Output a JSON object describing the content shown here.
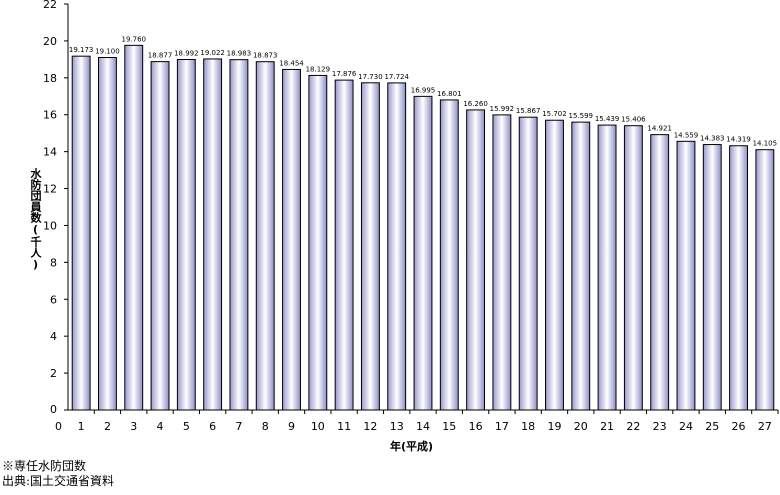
{
  "chart_data": {
    "type": "bar",
    "categories": [
      "1",
      "2",
      "3",
      "4",
      "5",
      "6",
      "7",
      "8",
      "9",
      "10",
      "11",
      "12",
      "13",
      "14",
      "15",
      "16",
      "17",
      "18",
      "19",
      "20",
      "21",
      "22",
      "23",
      "24",
      "25",
      "26",
      "27"
    ],
    "values": [
      19.173,
      19.1,
      19.76,
      18.877,
      18.992,
      19.022,
      18.983,
      18.873,
      18.454,
      18.129,
      17.876,
      17.73,
      17.724,
      16.995,
      16.801,
      16.26,
      15.992,
      15.867,
      15.702,
      15.599,
      15.439,
      15.406,
      14.921,
      14.559,
      14.383,
      14.319,
      14.105
    ],
    "value_labels": [
      "19.173",
      "19.100",
      "19.760",
      "18.877",
      "18.992",
      "19.022",
      "18.983",
      "18.873",
      "18.454",
      "18.129",
      "17.876",
      "17.730",
      "17.724",
      "16.995",
      "16.801",
      "16.260",
      "15.992",
      "15.867",
      "15.702",
      "15.599",
      "15.439",
      "15.406",
      "14.921",
      "14.559",
      "14.383",
      "14.319",
      "14.105"
    ],
    "title": "",
    "xlabel": "年(平成)",
    "ylabel": "水防団員数(千人)",
    "ylim": [
      0,
      22
    ],
    "yticks": [
      "0",
      "2",
      "4",
      "6",
      "8",
      "10",
      "12",
      "14",
      "16",
      "18",
      "20",
      "22"
    ],
    "x_origin_label": "0",
    "grid": false,
    "bar_fill_colors": [
      "#9a9acd",
      "#ffffff",
      "#8e8ec8"
    ],
    "bar_stroke_color": "#000000"
  },
  "notes": {
    "line1": "※専任水防団数",
    "line2": "出典:国土交通省資料"
  }
}
